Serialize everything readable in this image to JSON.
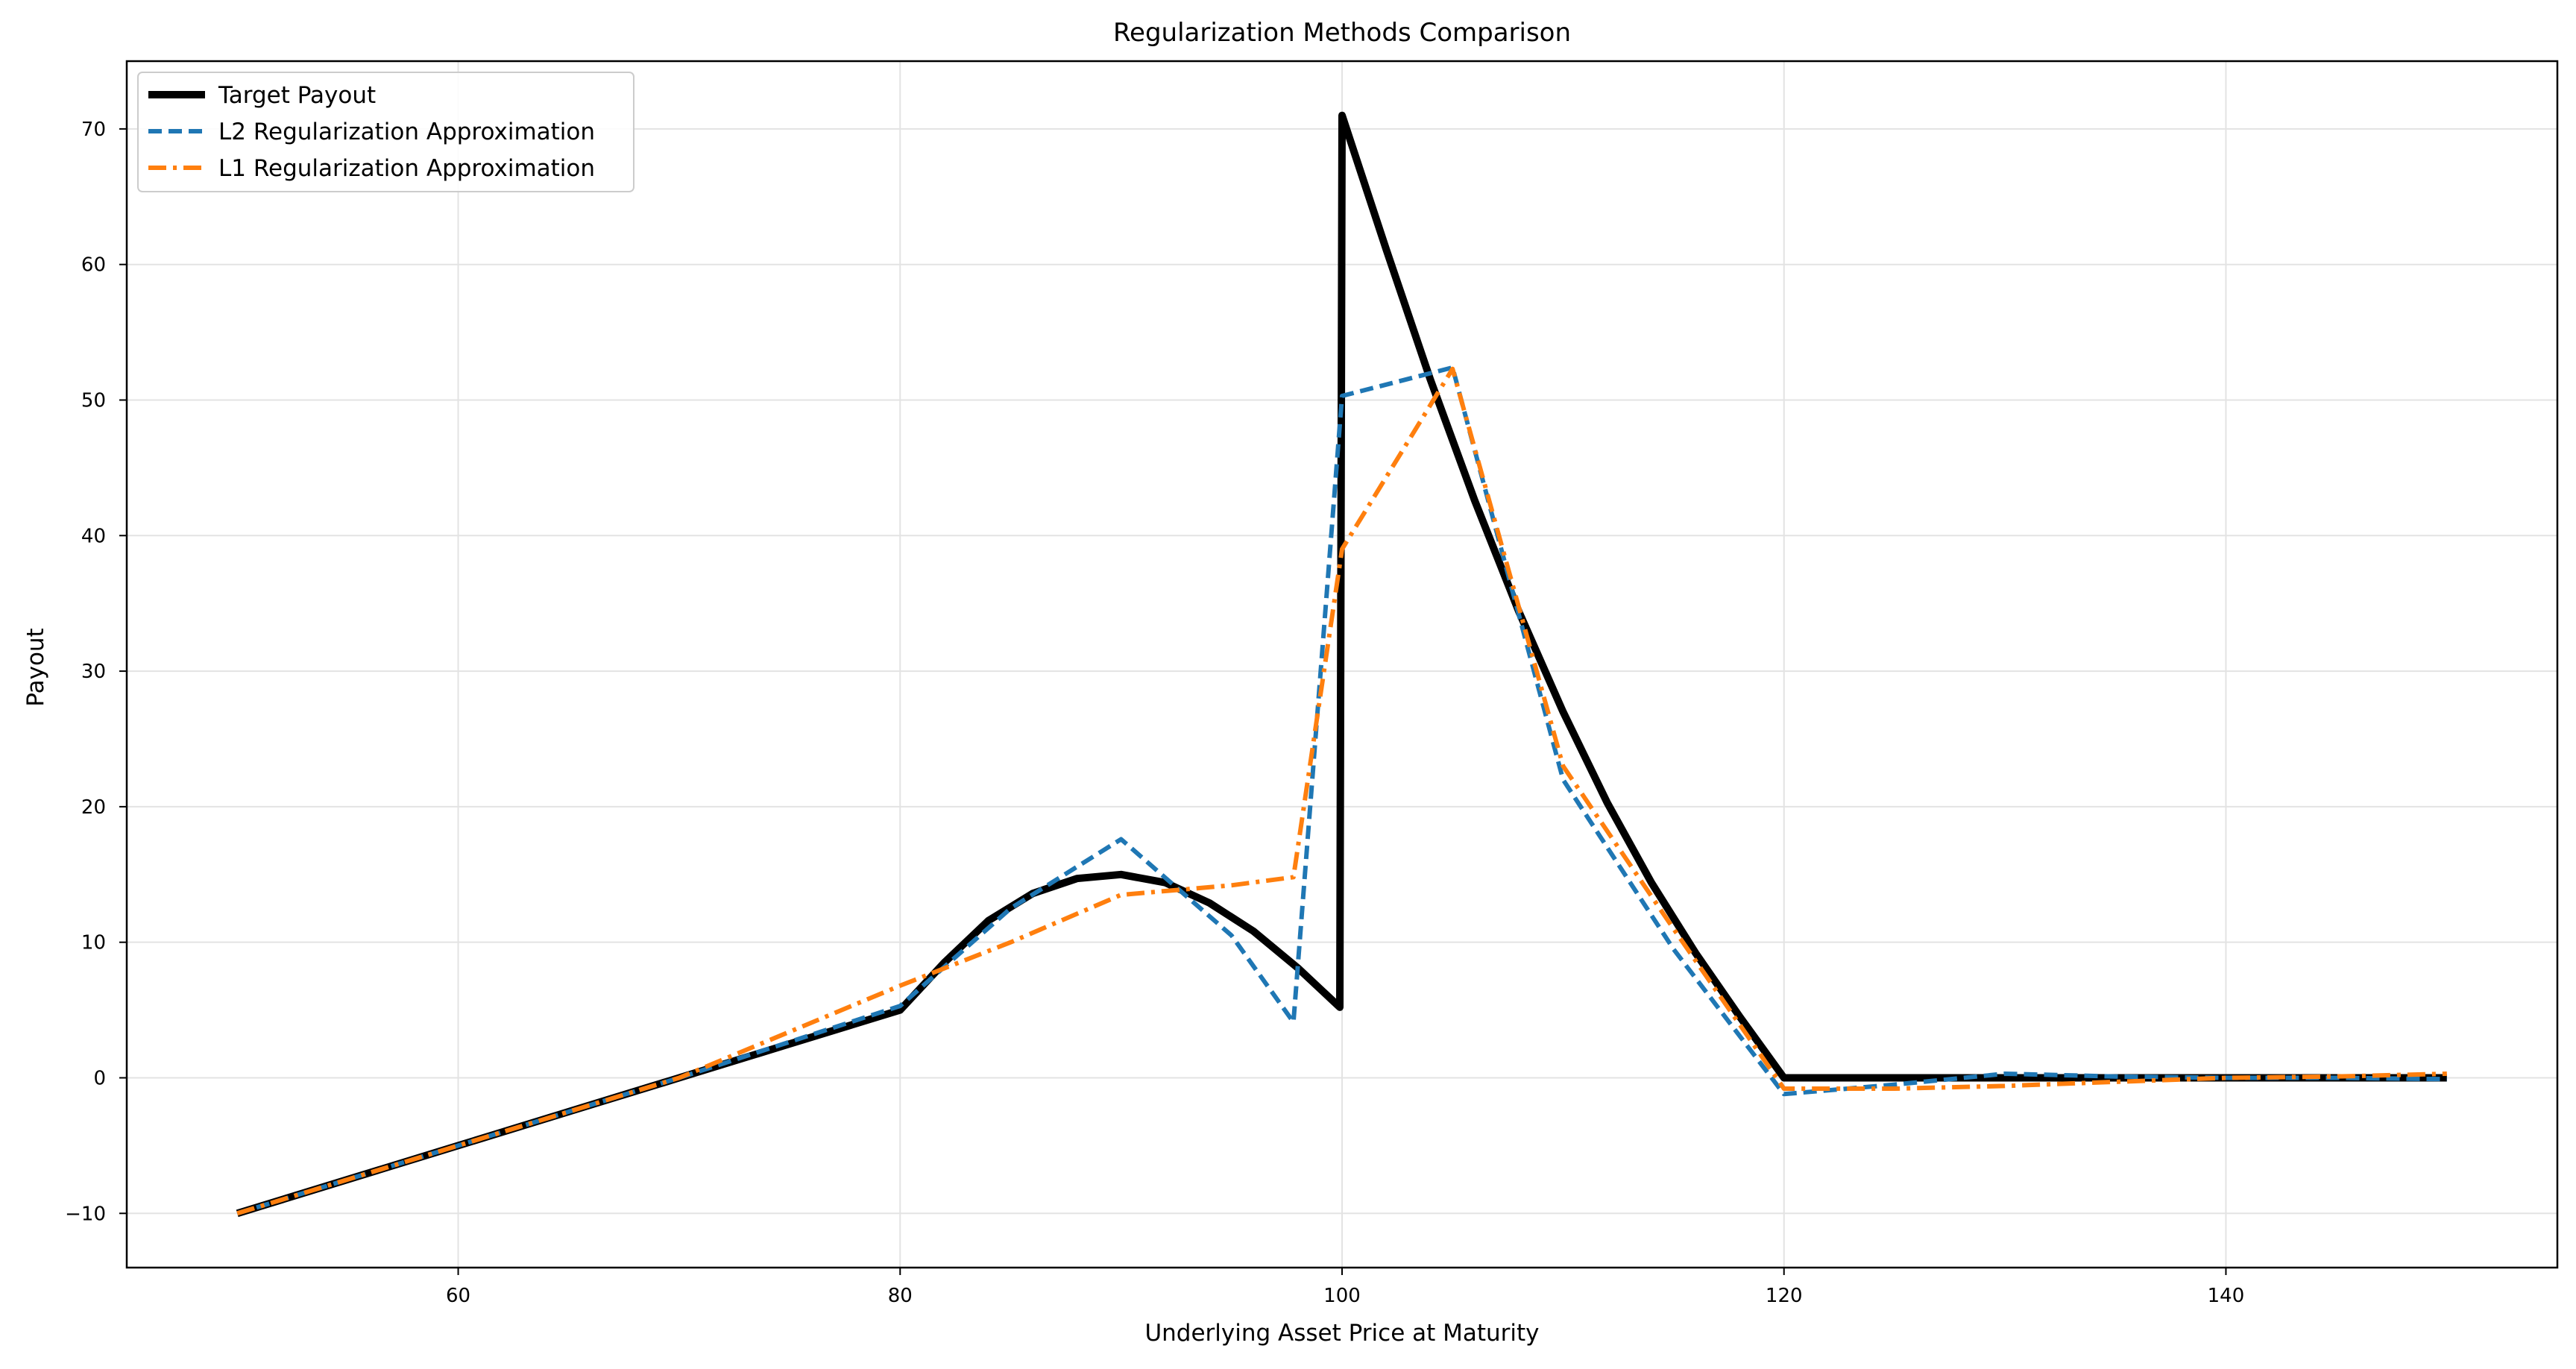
{
  "chart_data": {
    "type": "line",
    "title": "Regularization Methods Comparison",
    "xlabel": "Underlying Asset Price at Maturity",
    "ylabel": "Payout",
    "xlim": [
      45,
      155
    ],
    "ylim": [
      -14,
      75
    ],
    "xticks": [
      60,
      80,
      100,
      120,
      140
    ],
    "yticks": [
      -10,
      0,
      10,
      20,
      30,
      40,
      50,
      60,
      70
    ],
    "ytick_labels": [
      "−10",
      "0",
      "10",
      "20",
      "30",
      "40",
      "50",
      "60",
      "70"
    ],
    "grid": true,
    "legend_position": "top-left",
    "series": [
      {
        "name": "Target Payout",
        "color": "#000000",
        "style": "solid",
        "x": [
          50,
          55,
          60,
          65,
          70,
          75,
          80,
          82,
          84,
          86,
          88,
          90,
          92,
          94,
          96,
          98,
          99.9,
          100,
          102,
          104,
          106,
          108,
          110,
          112,
          114,
          116,
          118,
          120,
          125,
          130,
          135,
          140,
          145,
          150
        ],
        "y": [
          -10,
          -7.5,
          -5,
          -2.5,
          0,
          2.5,
          5,
          8.5,
          11.6,
          13.6,
          14.7,
          15,
          14.4,
          12.9,
          10.8,
          8.1,
          5.2,
          71,
          61.1,
          51.5,
          42.6,
          34.4,
          27,
          20.3,
          14.4,
          9.2,
          4.5,
          0,
          0,
          0,
          0,
          0,
          0,
          0
        ]
      },
      {
        "name": "L2 Regularization Approximation",
        "color": "#1f77b4",
        "style": "dashed",
        "x": [
          50,
          60,
          70,
          80,
          85,
          90,
          95,
          97.8,
          100,
          105,
          110,
          115,
          120,
          125,
          130,
          135,
          140,
          145,
          150
        ],
        "y": [
          -10,
          -5,
          0,
          5.3,
          12.5,
          17.6,
          10.5,
          4.1,
          50.3,
          52.4,
          22,
          9.5,
          -1.2,
          -0.5,
          0.3,
          0.1,
          0,
          0,
          -0.1
        ]
      },
      {
        "name": "L1 Regularization Approximation",
        "color": "#ff7f0e",
        "style": "dashdot",
        "x": [
          50,
          60,
          70,
          80,
          85,
          90,
          95,
          97.8,
          100,
          105,
          110,
          115,
          120,
          125,
          130,
          135,
          140,
          145,
          150
        ],
        "y": [
          -10,
          -5,
          0,
          6.8,
          10,
          13.5,
          14.2,
          14.8,
          39,
          52.3,
          23,
          11,
          -0.8,
          -0.8,
          -0.6,
          -0.3,
          0,
          0.1,
          0.3
        ]
      }
    ]
  }
}
